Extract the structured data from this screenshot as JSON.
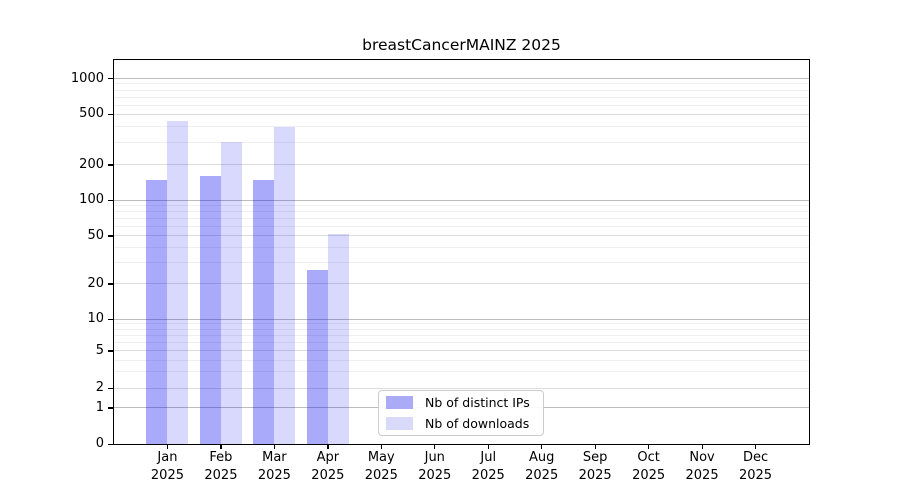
{
  "title": "breastCancerMAINZ 2025",
  "y_axis_tick_labels": [
    "0",
    "1",
    "2",
    "5",
    "10",
    "20",
    "50",
    "100",
    "200",
    "500",
    "1000"
  ],
  "x_axis": {
    "months": [
      "Jan",
      "Feb",
      "Mar",
      "Apr",
      "May",
      "Jun",
      "Jul",
      "Aug",
      "Sep",
      "Oct",
      "Nov",
      "Dec"
    ],
    "year": "2025"
  },
  "legend": {
    "items": [
      {
        "label": "Nb of distinct IPs",
        "swatch_color": "#aaaaf6"
      },
      {
        "label": "Nb of downloads",
        "swatch_color": "#d9d9f9"
      }
    ]
  },
  "chart_data": {
    "type": "bar",
    "title": "breastCancerMAINZ 2025",
    "categories": [
      "Jan 2025",
      "Feb 2025",
      "Mar 2025",
      "Apr 2025",
      "May 2025",
      "Jun 2025",
      "Jul 2025",
      "Aug 2025",
      "Sep 2025",
      "Oct 2025",
      "Nov 2025",
      "Dec 2025"
    ],
    "series": [
      {
        "name": "Nb of distinct IPs",
        "color": "#aaaaf6",
        "fill": "rgba(10,10,240,0.345)",
        "values": [
          150,
          160,
          148,
          26,
          0,
          0,
          0,
          0,
          0,
          0,
          0,
          0
        ]
      },
      {
        "name": "Nb of downloads",
        "color": "#d9d9f9",
        "fill": "rgba(10,10,240,0.155)",
        "values": [
          445,
          305,
          395,
          52,
          0,
          0,
          0,
          0,
          0,
          0,
          0,
          0
        ]
      }
    ],
    "xlabel": "",
    "ylabel": "",
    "y_ticks": [
      0,
      1,
      2,
      5,
      10,
      20,
      50,
      100,
      200,
      500,
      1000
    ],
    "y_scale": "symlog",
    "ylim_top_approx": 1400,
    "grid": "major-and-minor",
    "legend_position": "lower center, inside plot"
  }
}
